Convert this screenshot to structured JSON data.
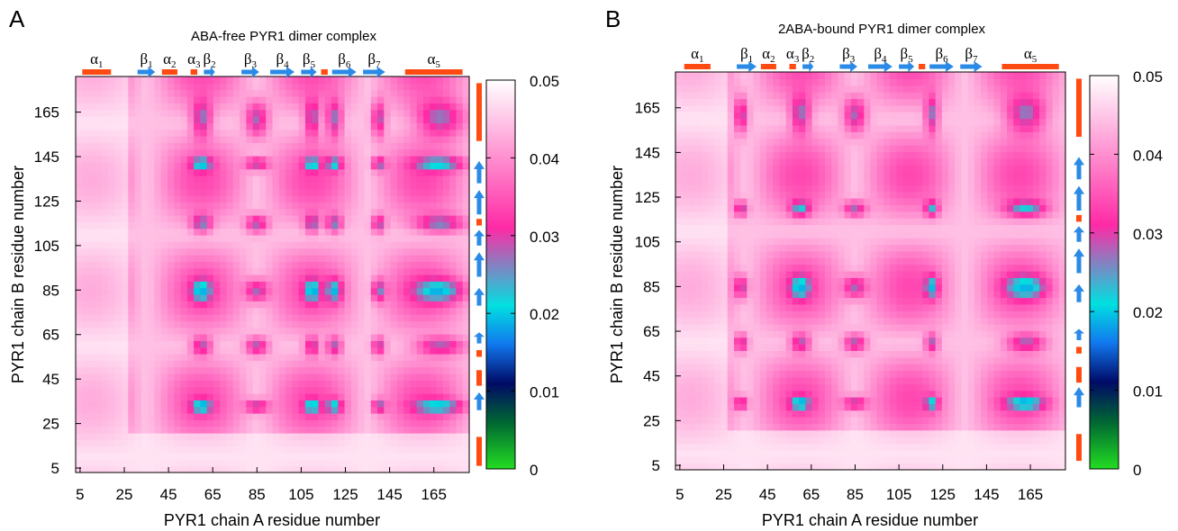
{
  "chart_data": [
    {
      "panel": "A",
      "type": "heatmap",
      "title": "ABA-free PYR1 dimer complex",
      "xlabel": "PYR1 chain A residue number",
      "ylabel": "PYR1 chain B residue number",
      "x_ticks": [
        "5",
        "25",
        "45",
        "65",
        "85",
        "105",
        "125",
        "145",
        "165"
      ],
      "y_ticks": [
        "5",
        "25",
        "45",
        "65",
        "85",
        "105",
        "125",
        "145",
        "165"
      ],
      "xlim": [
        3,
        181
      ],
      "ylim": [
        3,
        181
      ],
      "colorbar": {
        "min": 0,
        "max": 0.05,
        "ticks": [
          "0",
          "0.01",
          "0.02",
          "0.03",
          "0.04",
          "0.05"
        ],
        "colors": [
          "#22dd22",
          "#006633",
          "#000a66",
          "#1177ee",
          "#00e0e0",
          "#ff2aa5",
          "#ffffff"
        ]
      },
      "secondary_structure": [
        {
          "type": "helix",
          "label": "α",
          "sub": "1",
          "start": 6,
          "end": 19
        },
        {
          "type": "strand",
          "label": "β",
          "sub": "1",
          "start": 31,
          "end": 39
        },
        {
          "type": "helix",
          "label": "α",
          "sub": "2",
          "start": 42,
          "end": 49
        },
        {
          "type": "helix",
          "label": "α",
          "sub": "3",
          "start": 55,
          "end": 58
        },
        {
          "type": "strand",
          "label": "β",
          "sub": "2",
          "start": 61,
          "end": 66
        },
        {
          "type": "strand",
          "label": "β",
          "sub": "3",
          "start": 78,
          "end": 86
        },
        {
          "type": "strand",
          "label": "β",
          "sub": "4",
          "start": 91,
          "end": 102
        },
        {
          "type": "strand",
          "label": "β",
          "sub": "5",
          "start": 105,
          "end": 112
        },
        {
          "type": "helix",
          "label": "",
          "sub": "",
          "start": 114,
          "end": 117
        },
        {
          "type": "strand",
          "label": "β",
          "sub": "6",
          "start": 119,
          "end": 130
        },
        {
          "type": "strand",
          "label": "β",
          "sub": "7",
          "start": 133,
          "end": 143
        },
        {
          "type": "helix",
          "label": "α",
          "sub": "5",
          "start": 152,
          "end": 178
        }
      ],
      "hotspot_cols": [
        {
          "c": 60,
          "s": 4.5
        },
        {
          "c": 85,
          "s": 5
        },
        {
          "c": 168,
          "s": 11
        },
        {
          "c": 110,
          "s": 3.5
        },
        {
          "c": 120,
          "s": 3.5
        },
        {
          "c": 140,
          "s": 3
        }
      ],
      "hotspot_rows": [
        {
          "c": 162,
          "s": 8
        },
        {
          "c": 85,
          "s": 5
        },
        {
          "c": 60,
          "s": 4
        },
        {
          "c": 33,
          "s": 3
        },
        {
          "c": 142,
          "s": 3
        },
        {
          "c": 115,
          "s": 4
        }
      ]
    },
    {
      "panel": "B",
      "type": "heatmap",
      "title": "2ABA-bound PYR1 dimer complex",
      "xlabel": "PYR1 chain A residue number",
      "ylabel": "PYR1 chain B residue number",
      "x_ticks": [
        "5",
        "25",
        "45",
        "65",
        "85",
        "105",
        "125",
        "145",
        "165"
      ],
      "y_ticks": [
        "5",
        "25",
        "45",
        "65",
        "85",
        "105",
        "125",
        "145",
        "165"
      ],
      "xlim": [
        3,
        181
      ],
      "ylim": [
        3,
        181
      ],
      "colorbar": {
        "min": 0,
        "max": 0.05,
        "ticks": [
          "0",
          "0.01",
          "0.02",
          "0.03",
          "0.04",
          "0.05"
        ],
        "colors": [
          "#22dd22",
          "#006633",
          "#000a66",
          "#1177ee",
          "#00e0e0",
          "#ff2aa5",
          "#ffffff"
        ]
      },
      "secondary_structure": [
        {
          "type": "helix",
          "label": "α",
          "sub": "1",
          "start": 7,
          "end": 19
        },
        {
          "type": "strand",
          "label": "β",
          "sub": "1",
          "start": 31,
          "end": 40
        },
        {
          "type": "helix",
          "label": "α",
          "sub": "2",
          "start": 42,
          "end": 49
        },
        {
          "type": "helix",
          "label": "α",
          "sub": "3",
          "start": 55,
          "end": 58
        },
        {
          "type": "strand",
          "label": "β",
          "sub": "2",
          "start": 61,
          "end": 66
        },
        {
          "type": "strand",
          "label": "β",
          "sub": "3",
          "start": 78,
          "end": 86
        },
        {
          "type": "strand",
          "label": "β",
          "sub": "4",
          "start": 91,
          "end": 102
        },
        {
          "type": "strand",
          "label": "β",
          "sub": "5",
          "start": 105,
          "end": 112
        },
        {
          "type": "helix",
          "label": "",
          "sub": "",
          "start": 114,
          "end": 117
        },
        {
          "type": "strand",
          "label": "β",
          "sub": "6",
          "start": 119,
          "end": 130
        },
        {
          "type": "strand",
          "label": "β",
          "sub": "7",
          "start": 133,
          "end": 143
        },
        {
          "type": "helix",
          "label": "α",
          "sub": "5",
          "start": 152,
          "end": 178
        }
      ],
      "hotspot_cols": [
        {
          "c": 60,
          "s": 4.5
        },
        {
          "c": 85,
          "s": 5
        },
        {
          "c": 163,
          "s": 9
        },
        {
          "c": 33,
          "s": 3
        },
        {
          "c": 120,
          "s": 3
        }
      ],
      "hotspot_rows": [
        {
          "c": 162,
          "s": 8
        },
        {
          "c": 85,
          "s": 5
        },
        {
          "c": 60,
          "s": 4
        },
        {
          "c": 33,
          "s": 3
        },
        {
          "c": 120,
          "s": 3.5
        }
      ]
    }
  ]
}
